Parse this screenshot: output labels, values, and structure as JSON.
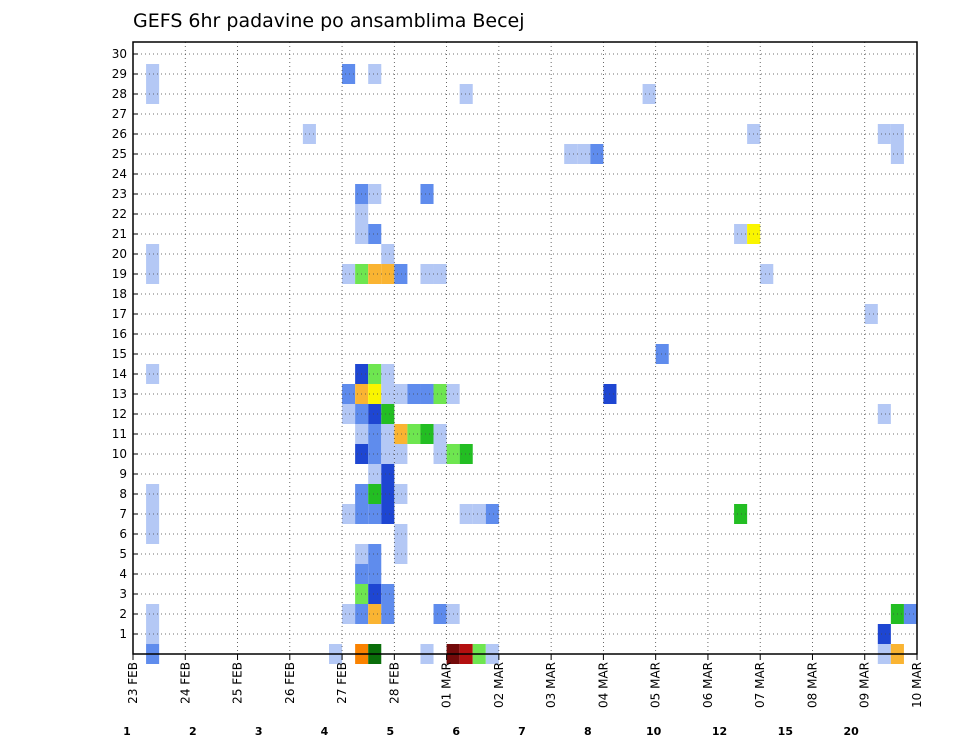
{
  "chart_data": {
    "type": "heatmap",
    "title": "GEFS 6hr padavine po ansamblima Becej",
    "y_ticks": [
      1,
      2,
      3,
      4,
      5,
      6,
      7,
      8,
      9,
      10,
      11,
      12,
      13,
      14,
      15,
      16,
      17,
      18,
      19,
      20,
      21,
      22,
      23,
      24,
      25,
      26,
      27,
      28,
      29,
      30
    ],
    "ylim": [
      0,
      30
    ],
    "x_ticks": [
      "23 FEB",
      "24 FEB",
      "25 FEB",
      "26 FEB",
      "27 FEB",
      "28 FEB",
      "01 MAR",
      "02 MAR",
      "03 MAR",
      "04 MAR",
      "05 MAR",
      "06 MAR",
      "07 MAR",
      "08 MAR",
      "09 MAR",
      "10 MAR"
    ],
    "x_range_days": [
      0,
      15
    ],
    "grid": true,
    "colorbar": {
      "levels": [
        "1",
        "2",
        "3",
        "4",
        "5",
        "6",
        "7",
        "8",
        "10",
        "12",
        "15",
        "20"
      ],
      "colors": [
        "#b4c8f5",
        "#5f8ced",
        "#1e46d2",
        "#6ee650",
        "#23be23",
        "#0a6e0a",
        "#faf500",
        "#fab432",
        "#fa8200",
        "#e62d14",
        "#b40f0f",
        "#730a0a"
      ]
    },
    "cells": [
      [
        0.25,
        0,
        2
      ],
      [
        0.25,
        1,
        1
      ],
      [
        0.25,
        2,
        1
      ],
      [
        0.25,
        6,
        1
      ],
      [
        0.25,
        7,
        1
      ],
      [
        0.25,
        8,
        1
      ],
      [
        0.25,
        14,
        1
      ],
      [
        0.25,
        19,
        1
      ],
      [
        0.25,
        20,
        1
      ],
      [
        0.25,
        28,
        1
      ],
      [
        0.25,
        29,
        1
      ],
      [
        3.25,
        26,
        1
      ],
      [
        3.75,
        0,
        1
      ],
      [
        4.0,
        2,
        1
      ],
      [
        4.0,
        7,
        1
      ],
      [
        4.0,
        12,
        1
      ],
      [
        4.0,
        13,
        2
      ],
      [
        4.0,
        19,
        1
      ],
      [
        4.0,
        29,
        2
      ],
      [
        4.25,
        0,
        9
      ],
      [
        4.25,
        2,
        2
      ],
      [
        4.25,
        3,
        4
      ],
      [
        4.25,
        4,
        2
      ],
      [
        4.25,
        5,
        1
      ],
      [
        4.25,
        7,
        2
      ],
      [
        4.25,
        8,
        2
      ],
      [
        4.25,
        10,
        3
      ],
      [
        4.25,
        11,
        1
      ],
      [
        4.25,
        12,
        2
      ],
      [
        4.25,
        13,
        8
      ],
      [
        4.25,
        14,
        3
      ],
      [
        4.25,
        19,
        4
      ],
      [
        4.25,
        21,
        1
      ],
      [
        4.25,
        22,
        1
      ],
      [
        4.25,
        23,
        2
      ],
      [
        4.5,
        0,
        6
      ],
      [
        4.5,
        2,
        8
      ],
      [
        4.5,
        3,
        3
      ],
      [
        4.5,
        4,
        2
      ],
      [
        4.5,
        5,
        2
      ],
      [
        4.5,
        7,
        2
      ],
      [
        4.5,
        8,
        5
      ],
      [
        4.5,
        9,
        1
      ],
      [
        4.5,
        10,
        2
      ],
      [
        4.5,
        11,
        2
      ],
      [
        4.5,
        12,
        3
      ],
      [
        4.5,
        13,
        7
      ],
      [
        4.5,
        14,
        4
      ],
      [
        4.5,
        19,
        8
      ],
      [
        4.5,
        21,
        2
      ],
      [
        4.5,
        23,
        1
      ],
      [
        4.5,
        29,
        1
      ],
      [
        4.75,
        2,
        2
      ],
      [
        4.75,
        3,
        2
      ],
      [
        4.75,
        7,
        3
      ],
      [
        4.75,
        8,
        3
      ],
      [
        4.75,
        9,
        3
      ],
      [
        4.75,
        10,
        1
      ],
      [
        4.75,
        11,
        1
      ],
      [
        4.75,
        12,
        5
      ],
      [
        4.75,
        13,
        1
      ],
      [
        4.75,
        14,
        1
      ],
      [
        4.75,
        19,
        8
      ],
      [
        4.75,
        20,
        1
      ],
      [
        5.0,
        5,
        1
      ],
      [
        5.0,
        6,
        1
      ],
      [
        5.0,
        8,
        1
      ],
      [
        5.0,
        10,
        1
      ],
      [
        5.0,
        11,
        8
      ],
      [
        5.0,
        13,
        1
      ],
      [
        5.0,
        19,
        2
      ],
      [
        5.25,
        11,
        4
      ],
      [
        5.25,
        13,
        2
      ],
      [
        5.5,
        0,
        1
      ],
      [
        5.5,
        11,
        5
      ],
      [
        5.5,
        13,
        2
      ],
      [
        5.5,
        19,
        1
      ],
      [
        5.5,
        23,
        2
      ],
      [
        5.75,
        2,
        2
      ],
      [
        5.75,
        10,
        1
      ],
      [
        5.75,
        11,
        1
      ],
      [
        5.75,
        13,
        4
      ],
      [
        5.75,
        19,
        1
      ],
      [
        6.0,
        0,
        12
      ],
      [
        6.0,
        2,
        1
      ],
      [
        6.0,
        10,
        4
      ],
      [
        6.0,
        13,
        1
      ],
      [
        6.25,
        0,
        11
      ],
      [
        6.25,
        7,
        1
      ],
      [
        6.25,
        10,
        5
      ],
      [
        6.25,
        28,
        1
      ],
      [
        6.5,
        0,
        4
      ],
      [
        6.5,
        7,
        1
      ],
      [
        6.75,
        0,
        1
      ],
      [
        6.75,
        7,
        2
      ],
      [
        8.25,
        25,
        1
      ],
      [
        8.5,
        25,
        1
      ],
      [
        8.75,
        25,
        2
      ],
      [
        9.0,
        13,
        3
      ],
      [
        9.75,
        28,
        1
      ],
      [
        10.0,
        15,
        2
      ],
      [
        11.5,
        7,
        5
      ],
      [
        11.5,
        21,
        1
      ],
      [
        11.75,
        21,
        7
      ],
      [
        11.75,
        26,
        1
      ],
      [
        12.0,
        19,
        1
      ],
      [
        14.0,
        17,
        1
      ],
      [
        14.25,
        0,
        1
      ],
      [
        14.25,
        1,
        3
      ],
      [
        14.25,
        12,
        1
      ],
      [
        14.25,
        26,
        1
      ],
      [
        14.5,
        0,
        8
      ],
      [
        14.5,
        2,
        5
      ],
      [
        14.5,
        25,
        1
      ],
      [
        14.5,
        26,
        1
      ],
      [
        14.75,
        2,
        2
      ]
    ]
  }
}
